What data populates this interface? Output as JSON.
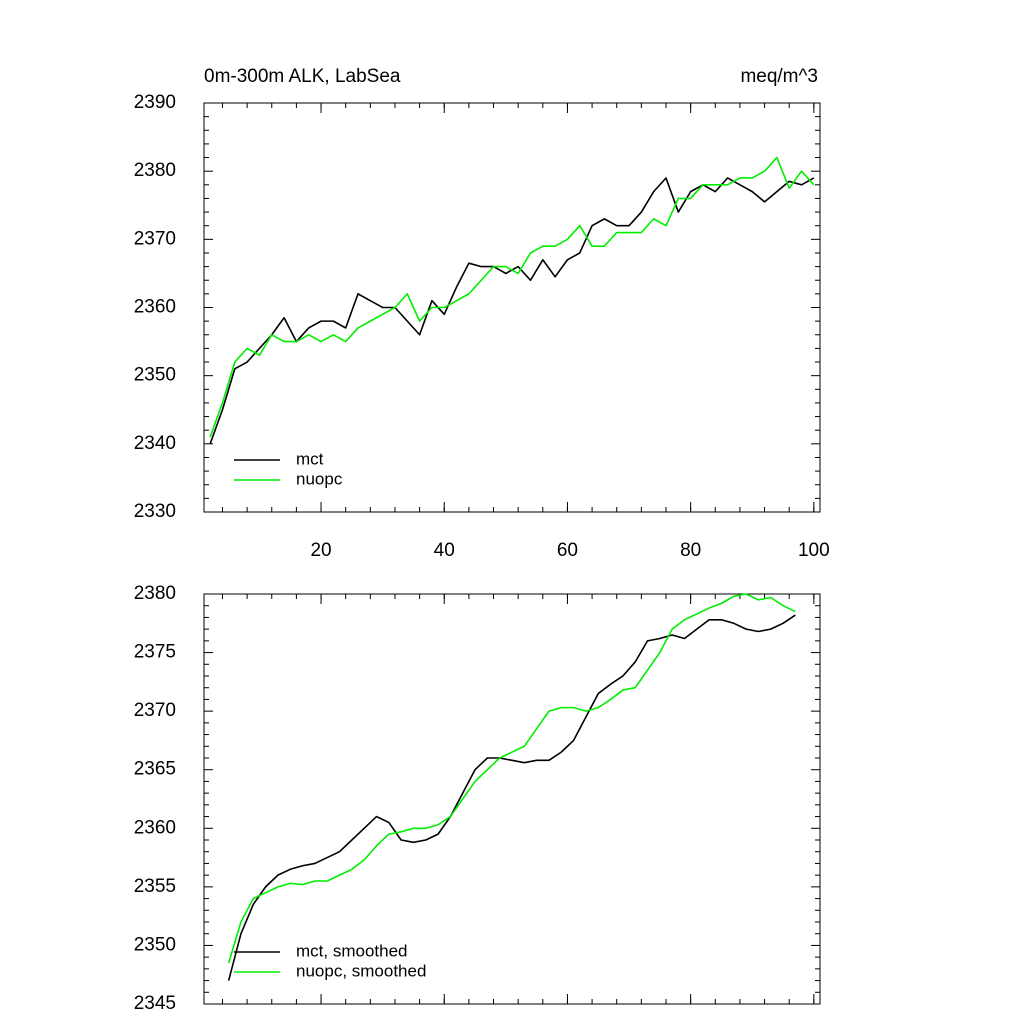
{
  "chart_data": [
    {
      "type": "line",
      "title": "0m-300m ALK, LabSea",
      "units": "meq/m^3",
      "x": [
        2,
        4,
        6,
        8,
        10,
        12,
        14,
        16,
        18,
        20,
        22,
        24,
        26,
        28,
        30,
        32,
        34,
        36,
        38,
        40,
        42,
        44,
        46,
        48,
        50,
        52,
        54,
        56,
        58,
        60,
        62,
        64,
        66,
        68,
        70,
        72,
        74,
        76,
        78,
        80,
        82,
        84,
        86,
        88,
        90,
        92,
        94,
        96,
        98,
        100
      ],
      "series": [
        {
          "name": "mct",
          "color": "#000000",
          "values": [
            2340,
            2345,
            2351,
            2352,
            2354,
            2356,
            2358.5,
            2355,
            2357,
            2358,
            2358,
            2357,
            2362,
            2361,
            2360,
            2360,
            2358,
            2356,
            2361,
            2359,
            2363,
            2366.5,
            2366,
            2366,
            2365,
            2366,
            2364,
            2367,
            2364.5,
            2367,
            2368,
            2372,
            2373,
            2372,
            2372,
            2374,
            2377,
            2379,
            2374,
            2377,
            2378,
            2377,
            2379,
            2378,
            2377,
            2375.5,
            2377,
            2378.5,
            2378,
            2379
          ]
        },
        {
          "name": "nuopc",
          "color": "#00ee00",
          "values": [
            2341,
            2346,
            2352,
            2354,
            2353,
            2356,
            2355,
            2355,
            2356,
            2355,
            2356,
            2355,
            2357,
            2358,
            2359,
            2360,
            2362,
            2358,
            2360,
            2360,
            2361,
            2362,
            2364,
            2366,
            2366,
            2365,
            2368,
            2369,
            2369,
            2370,
            2372,
            2369,
            2369,
            2371,
            2371,
            2371,
            2373,
            2372,
            2376,
            2376,
            2378,
            2378,
            2378,
            2379,
            2379,
            2380,
            2382,
            2377.5,
            2380,
            2378
          ]
        }
      ],
      "xlim": [
        1,
        101
      ],
      "ylim": [
        2330,
        2390
      ],
      "xticks": [
        20,
        40,
        60,
        80,
        100
      ],
      "yticks": [
        2330,
        2340,
        2350,
        2360,
        2370,
        2380,
        2390
      ],
      "legend": "lower left"
    },
    {
      "type": "line",
      "x": [
        5,
        7,
        9,
        11,
        13,
        15,
        17,
        19,
        21,
        23,
        25,
        27,
        29,
        31,
        33,
        35,
        37,
        39,
        41,
        43,
        45,
        47,
        49,
        51,
        53,
        55,
        57,
        59,
        61,
        63,
        65,
        67,
        69,
        71,
        73,
        75,
        77,
        79,
        81,
        83,
        85,
        87,
        89,
        91,
        93,
        95,
        97
      ],
      "series": [
        {
          "name": "mct, smoothed",
          "color": "#000000",
          "values": [
            2347,
            2351,
            2353.5,
            2355,
            2356,
            2356.5,
            2356.8,
            2357,
            2357.5,
            2358,
            2359,
            2360,
            2361,
            2360.5,
            2359,
            2358.8,
            2359,
            2359.5,
            2361,
            2363,
            2365,
            2366,
            2366,
            2365.8,
            2365.6,
            2365.8,
            2365.8,
            2366.5,
            2367.5,
            2369.5,
            2371.5,
            2372.3,
            2373,
            2374.2,
            2376,
            2376.2,
            2376.5,
            2376.2,
            2377,
            2377.8,
            2377.8,
            2377.5,
            2377,
            2376.8,
            2377,
            2377.5,
            2378.2
          ]
        },
        {
          "name": "nuopc, smoothed",
          "color": "#00ee00",
          "values": [
            2348.5,
            2352,
            2354,
            2354.5,
            2355,
            2355.3,
            2355.2,
            2355.5,
            2355.5,
            2356,
            2356.5,
            2357.3,
            2358.5,
            2359.5,
            2359.7,
            2360,
            2360,
            2360.3,
            2361,
            2362.5,
            2364,
            2365,
            2366,
            2366.5,
            2367,
            2368.5,
            2370,
            2370.3,
            2370.3,
            2370,
            2370.3,
            2371,
            2371.8,
            2372,
            2373.5,
            2375,
            2377,
            2377.8,
            2378.3,
            2378.8,
            2379.2,
            2379.8,
            2380,
            2379.5,
            2379.7,
            2379,
            2378.5
          ]
        }
      ],
      "xlim": [
        1,
        101
      ],
      "ylim": [
        2345,
        2380
      ],
      "xticks": [
        20,
        40,
        60,
        80,
        100
      ],
      "yticks": [
        2345,
        2350,
        2355,
        2360,
        2365,
        2370,
        2375,
        2380
      ],
      "legend": "lower left"
    }
  ]
}
